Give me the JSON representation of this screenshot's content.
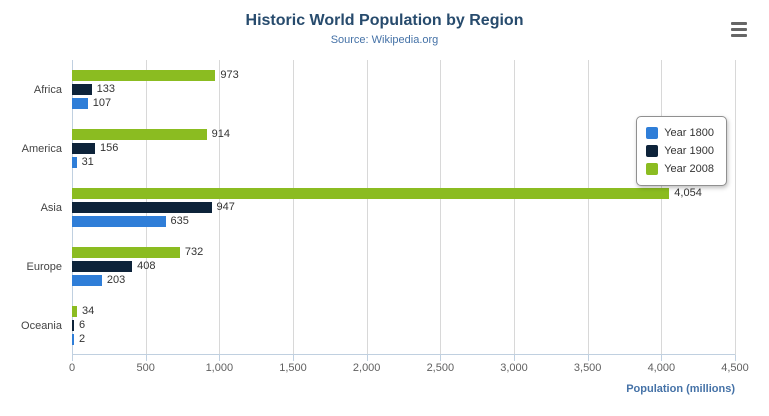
{
  "header": {
    "title": "Historic World Population by Region",
    "subtitle": "Source: Wikipedia.org"
  },
  "chart_data": {
    "type": "bar",
    "orientation": "horizontal",
    "title": "Historic World Population by Region",
    "subtitle": "Source: Wikipedia.org",
    "categories": [
      "Africa",
      "America",
      "Asia",
      "Europe",
      "Oceania"
    ],
    "series": [
      {
        "name": "Year 1800",
        "color": "#2f7ed8",
        "values": [
          107,
          31,
          635,
          203,
          2
        ]
      },
      {
        "name": "Year 1900",
        "color": "#0d233a",
        "values": [
          133,
          156,
          947,
          408,
          6
        ]
      },
      {
        "name": "Year 2008",
        "color": "#8bbc21",
        "values": [
          973,
          914,
          4054,
          732,
          34
        ]
      }
    ],
    "series_display_order": [
      "Year 2008",
      "Year 1900",
      "Year 1800"
    ],
    "xlabel": "Population (millions)",
    "ylabel": "",
    "xlim": [
      0,
      4500
    ],
    "x_ticks": [
      0,
      500,
      1000,
      1500,
      2000,
      2500,
      3000,
      3500,
      4000,
      4500
    ],
    "grid": true,
    "legend_position": "right"
  },
  "colors": {
    "title": "#274b6d",
    "subtitle": "#4572a7",
    "axis_title": "#4572a7",
    "gridline": "#d8d8d8",
    "axis_line": "#c0d0e0",
    "tick_label": "#606060"
  }
}
